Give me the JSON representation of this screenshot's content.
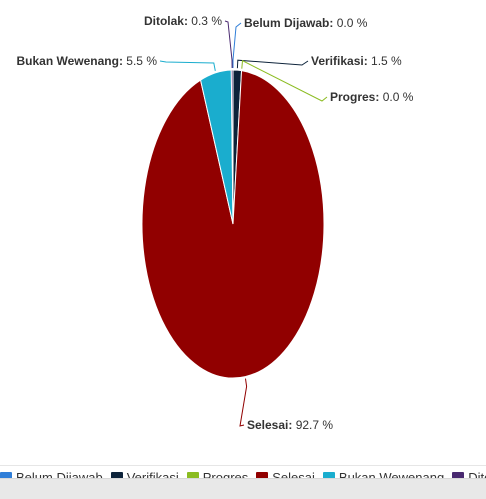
{
  "chart_data": {
    "type": "pie",
    "title": "",
    "slices": [
      {
        "name": "Belum Dijawab",
        "value": 0.0,
        "label": "Belum Dijawab: 0.0 %",
        "color": "#2f7ed8"
      },
      {
        "name": "Verifikasi",
        "value": 1.5,
        "label": "Verifikasi: 1.5 %",
        "color": "#0d233a"
      },
      {
        "name": "Progres",
        "value": 0.0,
        "label": "Progres: 0.0 %",
        "color": "#8bbc21"
      },
      {
        "name": "Selesai",
        "value": 92.7,
        "label": "Selesai: 92.7 %",
        "color": "#910000"
      },
      {
        "name": "Bukan Wewenang",
        "value": 5.5,
        "label": "Bukan Wewenang: 5.5 %",
        "color": "#1aadce"
      },
      {
        "name": "Ditolak",
        "value": 0.3,
        "label": "Ditolak: 0.3 %",
        "color": "#492970"
      }
    ],
    "legend": {
      "placement": "bottom",
      "items": [
        "Belum Dijawab",
        "Verifikasi",
        "Progres",
        "Selesai",
        "Bukan Wewenang",
        "Ditolak"
      ]
    }
  }
}
